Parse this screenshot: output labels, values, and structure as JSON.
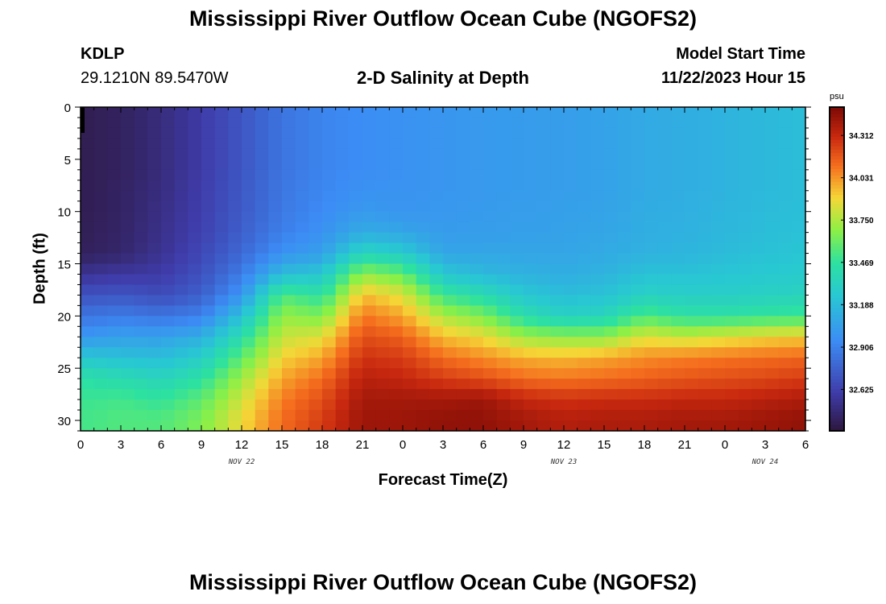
{
  "header": {
    "title": "Mississippi River Outflow Ocean Cube (NGOFS2)",
    "station_id": "KDLP",
    "station_coords": "29.1210N  89.5470W",
    "chart_subtitle": "2-D Salinity at Depth",
    "model_start_label": "Model Start Time",
    "model_start_value": "11/22/2023 Hour 15"
  },
  "footer": {
    "title_repeat": "Mississippi River Outflow Ocean Cube (NGOFS2)"
  },
  "chart_data": {
    "type": "heatmap",
    "title": "2-D Salinity at Depth",
    "xlabel": "Forecast Time(Z)",
    "ylabel": "Depth (ft)",
    "x_tick_labels": [
      "0",
      "3",
      "6",
      "9",
      "12",
      "15",
      "18",
      "21",
      "0",
      "3",
      "6",
      "9",
      "12",
      "15",
      "18",
      "21",
      "0",
      "3",
      "6"
    ],
    "x_date_labels": [
      {
        "label": "NOV 22",
        "at_tick": 4
      },
      {
        "label": "NOV 23",
        "at_tick": 12
      },
      {
        "label": "NOV 24",
        "at_tick": 17
      }
    ],
    "x_range_hours": [
      0,
      54
    ],
    "y_ticks": [
      0,
      5,
      10,
      15,
      20,
      25,
      30
    ],
    "y_range_ft": [
      0,
      31
    ],
    "y_inverted": true,
    "colorbar": {
      "unit": "psu",
      "ticks": [
        32.625,
        32.906,
        33.188,
        33.469,
        33.75,
        34.031,
        34.312
      ],
      "range": [
        32.35,
        34.5
      ]
    },
    "profile_depths_ft": [
      0,
      2,
      4,
      6,
      8,
      10,
      12,
      14,
      16,
      18,
      20,
      22,
      24,
      26,
      28,
      30,
      31
    ],
    "profiles": [
      {
        "t": 0,
        "s": [
          32.4,
          32.4,
          32.4,
          32.4,
          32.4,
          32.4,
          32.41,
          32.42,
          32.55,
          32.7,
          32.85,
          33.0,
          33.25,
          33.45,
          33.5,
          33.52,
          33.52
        ]
      },
      {
        "t": 3,
        "s": [
          32.43,
          32.43,
          32.43,
          32.43,
          32.44,
          32.44,
          32.45,
          32.46,
          32.58,
          32.72,
          32.88,
          33.05,
          33.22,
          33.4,
          33.52,
          33.55,
          33.55
        ]
      },
      {
        "t": 6,
        "s": [
          32.5,
          32.5,
          32.5,
          32.5,
          32.51,
          32.52,
          32.53,
          32.55,
          32.6,
          32.68,
          32.85,
          33.05,
          33.2,
          33.35,
          33.48,
          33.55,
          33.55
        ]
      },
      {
        "t": 9,
        "s": [
          32.6,
          32.6,
          32.6,
          32.6,
          32.61,
          32.62,
          32.63,
          32.66,
          32.7,
          32.76,
          32.9,
          33.12,
          33.3,
          33.45,
          33.58,
          33.65,
          33.65
        ]
      },
      {
        "t": 12,
        "s": [
          32.72,
          32.72,
          32.72,
          32.72,
          32.73,
          32.74,
          32.76,
          32.8,
          32.88,
          33.0,
          33.22,
          33.42,
          33.58,
          33.72,
          33.82,
          33.88,
          33.88
        ]
      },
      {
        "t": 15,
        "s": [
          32.85,
          32.85,
          32.85,
          32.85,
          32.86,
          32.87,
          32.9,
          32.98,
          33.2,
          33.55,
          33.7,
          33.8,
          33.9,
          34.0,
          34.08,
          34.12,
          34.12
        ]
      },
      {
        "t": 18,
        "s": [
          32.92,
          32.92,
          32.92,
          32.92,
          32.93,
          32.95,
          32.98,
          33.05,
          33.25,
          33.45,
          33.65,
          33.85,
          34.0,
          34.12,
          34.2,
          34.25,
          34.25
        ]
      },
      {
        "t": 21,
        "s": [
          32.96,
          32.96,
          32.96,
          32.96,
          32.98,
          33.02,
          33.12,
          33.35,
          33.7,
          33.95,
          34.1,
          34.2,
          34.28,
          34.35,
          34.4,
          34.42,
          34.42
        ]
      },
      {
        "t": 24,
        "s": [
          32.98,
          32.98,
          32.98,
          32.98,
          32.99,
          33.0,
          33.08,
          33.28,
          33.6,
          33.85,
          34.0,
          34.15,
          34.25,
          34.32,
          34.4,
          34.42,
          34.42
        ]
      },
      {
        "t": 27,
        "s": [
          33.0,
          33.0,
          33.0,
          33.0,
          33.0,
          33.01,
          33.03,
          33.08,
          33.25,
          33.5,
          33.75,
          33.95,
          34.12,
          34.25,
          34.4,
          34.45,
          34.45
        ]
      },
      {
        "t": 30,
        "s": [
          33.02,
          33.02,
          33.02,
          33.02,
          33.02,
          33.03,
          33.04,
          33.08,
          33.18,
          33.4,
          33.65,
          33.88,
          34.05,
          34.2,
          34.42,
          34.45,
          34.45
        ]
      },
      {
        "t": 33,
        "s": [
          33.03,
          33.03,
          33.03,
          33.03,
          33.03,
          33.04,
          33.05,
          33.08,
          33.14,
          33.25,
          33.42,
          33.72,
          33.98,
          34.12,
          34.32,
          34.4,
          34.4
        ]
      },
      {
        "t": 36,
        "s": [
          33.04,
          33.04,
          33.04,
          33.04,
          33.04,
          33.05,
          33.06,
          33.08,
          33.12,
          33.2,
          33.32,
          33.68,
          33.96,
          34.1,
          34.28,
          34.36,
          34.36
        ]
      },
      {
        "t": 39,
        "s": [
          33.06,
          33.06,
          33.06,
          33.06,
          33.06,
          33.07,
          33.08,
          33.1,
          33.15,
          33.22,
          33.35,
          33.68,
          34.0,
          34.12,
          34.3,
          34.38,
          34.38
        ]
      },
      {
        "t": 42,
        "s": [
          33.1,
          33.1,
          33.1,
          33.1,
          33.1,
          33.11,
          33.12,
          33.14,
          33.22,
          33.32,
          33.55,
          33.85,
          34.05,
          34.15,
          34.3,
          34.38,
          34.38
        ]
      },
      {
        "t": 45,
        "s": [
          33.12,
          33.12,
          33.12,
          33.12,
          33.12,
          33.13,
          33.14,
          33.16,
          33.22,
          33.3,
          33.45,
          33.8,
          34.08,
          34.18,
          34.32,
          34.4,
          34.4
        ]
      },
      {
        "t": 48,
        "s": [
          33.15,
          33.15,
          33.15,
          33.15,
          33.15,
          33.16,
          33.17,
          33.19,
          33.24,
          33.3,
          33.45,
          33.85,
          34.1,
          34.2,
          34.32,
          34.4,
          34.4
        ]
      },
      {
        "t": 51,
        "s": [
          33.18,
          33.18,
          33.18,
          33.18,
          33.18,
          33.19,
          33.2,
          33.22,
          33.26,
          33.32,
          33.48,
          33.9,
          34.12,
          34.22,
          34.35,
          34.42,
          34.42
        ]
      },
      {
        "t": 54,
        "s": [
          33.2,
          33.2,
          33.2,
          33.2,
          33.2,
          33.21,
          33.22,
          33.24,
          33.28,
          33.34,
          33.5,
          33.92,
          34.14,
          34.25,
          34.38,
          34.45,
          34.45
        ]
      }
    ]
  }
}
